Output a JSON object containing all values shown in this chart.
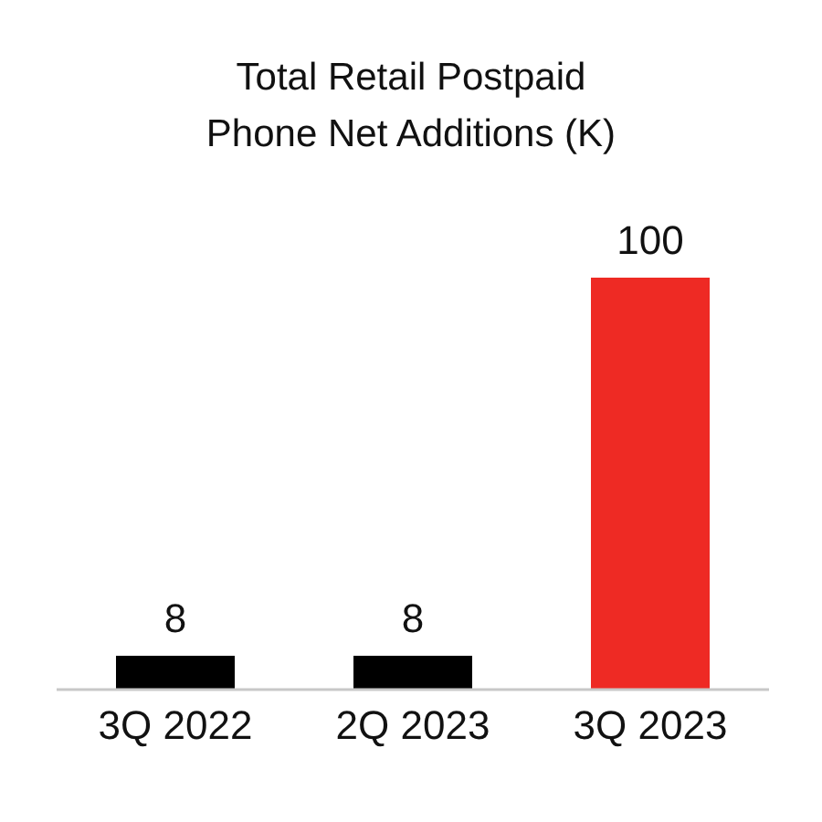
{
  "chart_data": {
    "type": "bar",
    "title": "Total Retail Postpaid\nPhone Net Additions (K)",
    "categories": [
      "3Q 2022",
      "2Q 2023",
      "3Q 2023"
    ],
    "values": [
      8,
      8,
      100
    ],
    "colors": [
      "#000000",
      "#000000",
      "#ee2a24"
    ],
    "data_labels": true
  }
}
